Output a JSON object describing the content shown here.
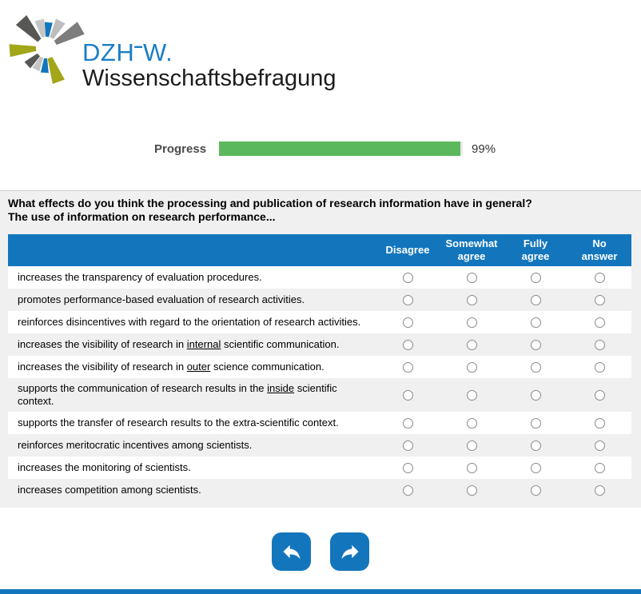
{
  "logo": {
    "brand_prefix": "DZH",
    "brand_dash": "-",
    "brand_suffix": "W.",
    "subtitle": "Wissenschaftsbefragung",
    "colors": {
      "blue": "#1b7ec5",
      "dark_gray": "#575756",
      "mid_gray": "#7d7d7d",
      "light_gray": "#c6c6c6",
      "olive": "#a3a619"
    }
  },
  "progress": {
    "label": "Progress",
    "percent": 99,
    "value_text": "99%",
    "bar_color": "#5cb85c",
    "track_color": "#e9e9e9"
  },
  "question": {
    "line1": "What effects do you think the processing and publication of research information have in general?",
    "line2": "The use of information on research performance..."
  },
  "table": {
    "header_color": "#1376bd",
    "columns": [
      {
        "lines": [
          "Disagree"
        ]
      },
      {
        "lines": [
          "Somewhat",
          "agree"
        ]
      },
      {
        "lines": [
          "Fully",
          "agree"
        ]
      },
      {
        "lines": [
          "No",
          "answer"
        ]
      }
    ],
    "rows": [
      {
        "segments": [
          {
            "t": "increases the transparency of evaluation procedures."
          }
        ]
      },
      {
        "segments": [
          {
            "t": "promotes performance-based evaluation of research activities."
          }
        ]
      },
      {
        "segments": [
          {
            "t": "reinforces disincentives with regard to the orientation of research activities."
          }
        ]
      },
      {
        "segments": [
          {
            "t": "increases the visibility of research in "
          },
          {
            "t": "internal",
            "u": true
          },
          {
            "t": " scientific communication."
          }
        ]
      },
      {
        "segments": [
          {
            "t": "increases the visibility of research in "
          },
          {
            "t": "outer",
            "u": true
          },
          {
            "t": " science communication."
          }
        ]
      },
      {
        "segments": [
          {
            "t": "supports the communication of research results in the "
          },
          {
            "t": "inside",
            "u": true
          },
          {
            "t": " scientific context."
          }
        ]
      },
      {
        "segments": [
          {
            "t": "supports the transfer of research results to the extra-scientific context."
          }
        ]
      },
      {
        "segments": [
          {
            "t": "reinforces meritocratic incentives among scientists."
          }
        ]
      },
      {
        "segments": [
          {
            "t": "increases the monitoring of scientists."
          }
        ]
      },
      {
        "segments": [
          {
            "t": "increases competition among scientists."
          }
        ]
      }
    ]
  },
  "nav": {
    "back_icon": "undo-arrow",
    "forward_icon": "redo-arrow",
    "button_color": "#1376bd"
  },
  "footer": {
    "bar_color": "#1376bd"
  }
}
